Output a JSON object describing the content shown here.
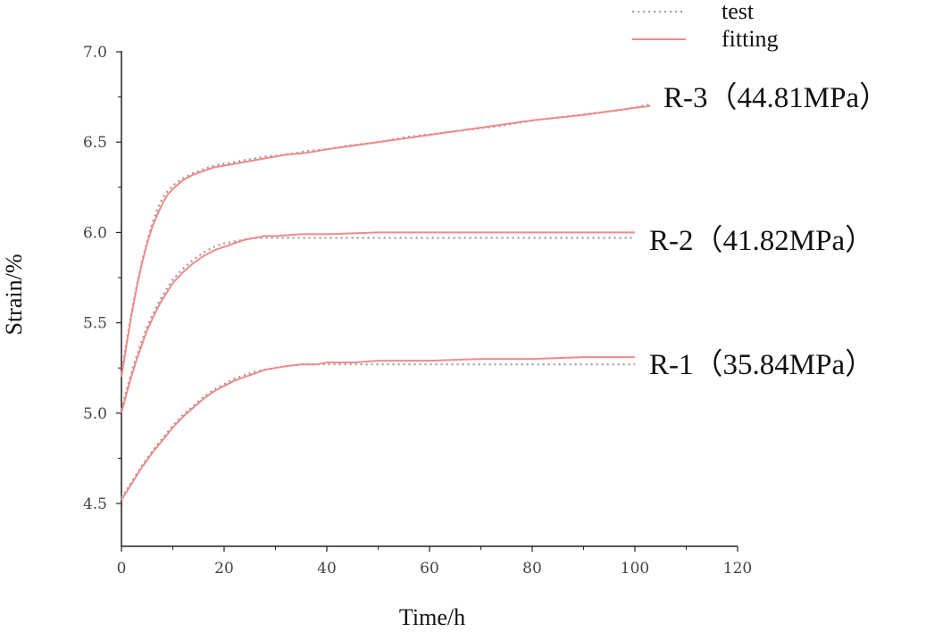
{
  "chart_data": {
    "type": "line",
    "xlabel": "Time/h",
    "ylabel": "Strain/%",
    "xlim": [
      0,
      120
    ],
    "ylim": [
      4.5,
      7.0
    ],
    "x_ticks": [
      "0",
      "20",
      "40",
      "60",
      "80",
      "100",
      "120"
    ],
    "y_ticks": [
      "4.5",
      "5.0",
      "5.5",
      "6.0",
      "6.5",
      "7.0"
    ],
    "grid": false,
    "legend": {
      "placement": "top-right",
      "entries": [
        {
          "label": "test",
          "style": "dotted",
          "color": "#9a9a9a"
        },
        {
          "label": "fitting",
          "style": "solid",
          "color": "#f08a8a"
        }
      ]
    },
    "series": [
      {
        "name": "R-3（44.81MPa）",
        "test": {
          "x": [
            0,
            1,
            2,
            3,
            4,
            5,
            6,
            7,
            8,
            9,
            10,
            12,
            14,
            16,
            18,
            20,
            24,
            28,
            32,
            36,
            40,
            44,
            50,
            56,
            62,
            68,
            74,
            80,
            86,
            92,
            98,
            103
          ],
          "y": [
            5.22,
            5.4,
            5.56,
            5.71,
            5.84,
            5.95,
            6.05,
            6.13,
            6.19,
            6.23,
            6.26,
            6.3,
            6.33,
            6.35,
            6.37,
            6.38,
            6.4,
            6.42,
            6.43,
            6.45,
            6.46,
            6.48,
            6.5,
            6.53,
            6.55,
            6.57,
            6.59,
            6.62,
            6.64,
            6.66,
            6.68,
            6.71
          ]
        },
        "fitting": {
          "x": [
            0,
            1,
            2,
            3,
            4,
            5,
            6,
            7,
            8,
            9,
            10,
            12,
            14,
            16,
            18,
            20,
            24,
            28,
            32,
            36,
            40,
            50,
            60,
            70,
            80,
            90,
            100,
            103
          ],
          "y": [
            5.2,
            5.38,
            5.55,
            5.7,
            5.83,
            5.94,
            6.03,
            6.1,
            6.16,
            6.21,
            6.24,
            6.29,
            6.32,
            6.34,
            6.36,
            6.37,
            6.39,
            6.41,
            6.43,
            6.44,
            6.46,
            6.5,
            6.54,
            6.58,
            6.62,
            6.65,
            6.69,
            6.7
          ]
        }
      },
      {
        "name": "R-2（41.82MPa）",
        "test": {
          "x": [
            0,
            1,
            2,
            3,
            4,
            5,
            6,
            7,
            8,
            10,
            12,
            14,
            16,
            18,
            20,
            22,
            24,
            26,
            28,
            30,
            35,
            40,
            50,
            60,
            70,
            80,
            90,
            100
          ],
          "y": [
            5.02,
            5.13,
            5.23,
            5.32,
            5.4,
            5.48,
            5.54,
            5.6,
            5.65,
            5.74,
            5.8,
            5.85,
            5.89,
            5.92,
            5.94,
            5.95,
            5.96,
            5.97,
            5.97,
            5.97,
            5.97,
            5.97,
            5.97,
            5.97,
            5.97,
            5.97,
            5.97,
            5.97
          ]
        },
        "fitting": {
          "x": [
            0,
            1,
            2,
            3,
            4,
            5,
            6,
            7,
            8,
            10,
            12,
            14,
            16,
            18,
            20,
            22,
            24,
            26,
            28,
            30,
            35,
            40,
            50,
            60,
            70,
            80,
            90,
            100
          ],
          "y": [
            5.0,
            5.11,
            5.21,
            5.3,
            5.38,
            5.46,
            5.52,
            5.58,
            5.63,
            5.72,
            5.78,
            5.83,
            5.87,
            5.9,
            5.92,
            5.94,
            5.96,
            5.97,
            5.98,
            5.98,
            5.99,
            5.99,
            6.0,
            6.0,
            6.0,
            6.0,
            6.0,
            6.0
          ]
        }
      },
      {
        "name": "R-1（35.84MPa）",
        "test": {
          "x": [
            0,
            2,
            4,
            6,
            8,
            10,
            12,
            14,
            16,
            18,
            20,
            22,
            24,
            26,
            28,
            30,
            32,
            35,
            38,
            40,
            45,
            50,
            60,
            70,
            80,
            90,
            100
          ],
          "y": [
            4.53,
            4.62,
            4.71,
            4.79,
            4.86,
            4.93,
            4.99,
            5.04,
            5.09,
            5.13,
            5.16,
            5.19,
            5.21,
            5.23,
            5.24,
            5.25,
            5.26,
            5.27,
            5.27,
            5.27,
            5.27,
            5.27,
            5.27,
            5.27,
            5.27,
            5.27,
            5.27
          ]
        },
        "fitting": {
          "x": [
            0,
            2,
            4,
            6,
            8,
            10,
            12,
            14,
            16,
            18,
            20,
            22,
            24,
            26,
            28,
            30,
            32,
            35,
            38,
            40,
            45,
            50,
            60,
            70,
            80,
            90,
            100
          ],
          "y": [
            4.52,
            4.61,
            4.7,
            4.78,
            4.85,
            4.92,
            4.98,
            5.03,
            5.08,
            5.12,
            5.15,
            5.18,
            5.2,
            5.22,
            5.24,
            5.25,
            5.26,
            5.27,
            5.27,
            5.28,
            5.28,
            5.29,
            5.29,
            5.3,
            5.3,
            5.31,
            5.31
          ]
        }
      }
    ]
  }
}
